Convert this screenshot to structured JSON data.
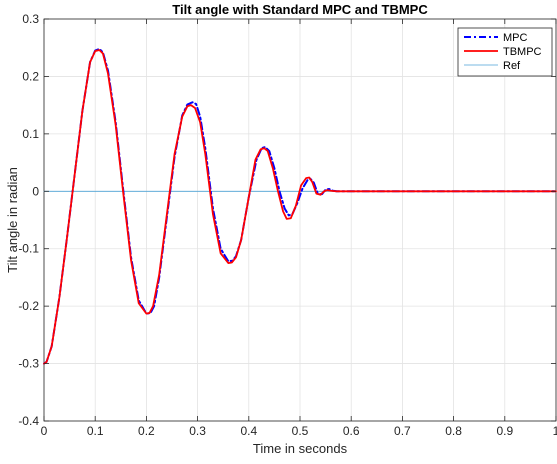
{
  "chart_data": {
    "type": "line",
    "title": "Tilt angle with Standard MPC and TBMPC",
    "xlabel": "Time in seconds",
    "ylabel": "Tilt angle in radian",
    "xlim": [
      0,
      1
    ],
    "ylim": [
      -0.4,
      0.3
    ],
    "xticks": [
      0,
      0.1,
      0.2,
      0.3,
      0.4,
      0.5,
      0.6,
      0.7,
      0.8,
      0.9,
      1
    ],
    "xtick_labels": [
      "0",
      "0.1",
      "0.2",
      "0.3",
      "0.4",
      "0.5",
      "0.6",
      "0.7",
      "0.8",
      "0.9",
      "1"
    ],
    "yticks": [
      -0.4,
      -0.3,
      -0.2,
      -0.1,
      0,
      0.1,
      0.2,
      0.3
    ],
    "ytick_labels": [
      "-0.4",
      "-0.3",
      "-0.2",
      "-0.1",
      "0",
      "0.1",
      "0.2",
      "0.3"
    ],
    "grid": true,
    "legend_position": "top-right",
    "series": [
      {
        "name": "MPC",
        "color": "#0000ff",
        "style": "dash-dot",
        "x": [
          0,
          0.005,
          0.015,
          0.03,
          0.045,
          0.06,
          0.075,
          0.09,
          0.1,
          0.108,
          0.115,
          0.125,
          0.14,
          0.155,
          0.17,
          0.185,
          0.2,
          0.208,
          0.215,
          0.225,
          0.24,
          0.255,
          0.27,
          0.28,
          0.29,
          0.297,
          0.305,
          0.315,
          0.33,
          0.345,
          0.36,
          0.368,
          0.375,
          0.385,
          0.4,
          0.415,
          0.425,
          0.432,
          0.44,
          0.45,
          0.46,
          0.47,
          0.478,
          0.485,
          0.495,
          0.505,
          0.515,
          0.52,
          0.527,
          0.535,
          0.543,
          0.55,
          0.557,
          0.564,
          0.572,
          0.58,
          0.6,
          0.7,
          0.8,
          0.9,
          1.0
        ],
        "y": [
          -0.3,
          -0.297,
          -0.27,
          -0.185,
          -0.08,
          0.03,
          0.14,
          0.225,
          0.245,
          0.248,
          0.242,
          0.21,
          0.12,
          0.0,
          -0.115,
          -0.19,
          -0.213,
          -0.212,
          -0.2,
          -0.15,
          -0.045,
          0.06,
          0.132,
          0.151,
          0.155,
          0.152,
          0.13,
          0.075,
          -0.03,
          -0.1,
          -0.122,
          -0.121,
          -0.113,
          -0.085,
          -0.01,
          0.055,
          0.075,
          0.077,
          0.07,
          0.04,
          0.0,
          -0.03,
          -0.042,
          -0.04,
          -0.02,
          0.005,
          0.02,
          0.022,
          0.015,
          -0.005,
          -0.005,
          0.003,
          0.004,
          0.001,
          0.0,
          0.0,
          0.0,
          0.0,
          0.0,
          0.0,
          0.0
        ]
      },
      {
        "name": "TBMPC",
        "color": "#ff0000",
        "style": "solid",
        "x": [
          0,
          0.005,
          0.015,
          0.03,
          0.045,
          0.06,
          0.075,
          0.09,
          0.1,
          0.108,
          0.115,
          0.125,
          0.14,
          0.155,
          0.17,
          0.185,
          0.2,
          0.206,
          0.213,
          0.225,
          0.24,
          0.255,
          0.27,
          0.28,
          0.287,
          0.295,
          0.305,
          0.315,
          0.33,
          0.345,
          0.36,
          0.367,
          0.375,
          0.385,
          0.4,
          0.413,
          0.423,
          0.43,
          0.437,
          0.447,
          0.457,
          0.467,
          0.474,
          0.482,
          0.492,
          0.502,
          0.512,
          0.518,
          0.524,
          0.532,
          0.54,
          0.547,
          0.553,
          0.56,
          0.57,
          0.58,
          0.6,
          0.7,
          0.8,
          0.9,
          1.0
        ],
        "y": [
          -0.3,
          -0.297,
          -0.27,
          -0.185,
          -0.08,
          0.03,
          0.14,
          0.225,
          0.244,
          0.246,
          0.24,
          0.205,
          0.115,
          -0.005,
          -0.12,
          -0.195,
          -0.213,
          -0.212,
          -0.2,
          -0.145,
          -0.04,
          0.065,
          0.13,
          0.148,
          0.15,
          0.145,
          0.12,
          0.065,
          -0.04,
          -0.108,
          -0.125,
          -0.124,
          -0.115,
          -0.085,
          -0.01,
          0.055,
          0.073,
          0.075,
          0.07,
          0.04,
          0.0,
          -0.035,
          -0.048,
          -0.047,
          -0.025,
          0.01,
          0.023,
          0.024,
          0.016,
          -0.004,
          -0.006,
          0.0,
          0.002,
          0.001,
          0.0,
          0.0,
          0.0,
          0.0,
          0.0,
          0.0,
          0.0
        ]
      },
      {
        "name": "Ref",
        "color": "#4da3d6",
        "style": "solid",
        "x": [
          0,
          1
        ],
        "y": [
          0,
          0
        ]
      }
    ]
  }
}
